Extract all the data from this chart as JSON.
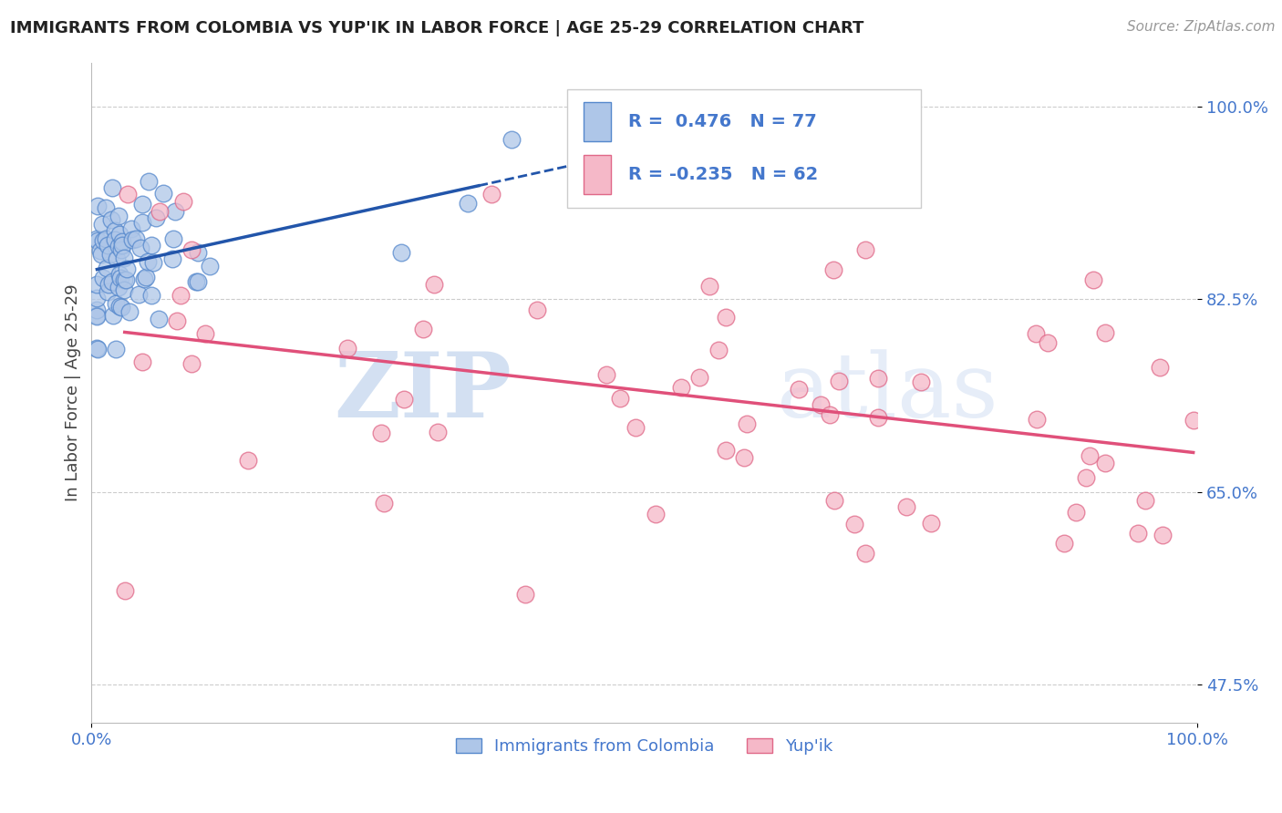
{
  "title": "IMMIGRANTS FROM COLOMBIA VS YUP'IK IN LABOR FORCE | AGE 25-29 CORRELATION CHART",
  "source_text": "Source: ZipAtlas.com",
  "ylabel": "In Labor Force | Age 25-29",
  "xlim": [
    0.0,
    1.0
  ],
  "ylim": [
    0.44,
    1.04
  ],
  "y_ticks": [
    0.475,
    0.65,
    0.825,
    1.0
  ],
  "y_tick_labels": [
    "47.5%",
    "65.0%",
    "82.5%",
    "100.0%"
  ],
  "legend_labels": [
    "Immigrants from Colombia",
    "Yup'ik"
  ],
  "colombia_color": "#aec6e8",
  "yupik_color": "#f5b8c8",
  "colombia_edge": "#5588cc",
  "yupik_edge": "#e06888",
  "trend_colombia_color": "#2255aa",
  "trend_yupik_color": "#e0507a",
  "R_colombia": 0.476,
  "N_colombia": 77,
  "R_yupik": -0.235,
  "N_yupik": 62,
  "background_color": "#ffffff",
  "grid_color": "#cccccc",
  "watermark_zip": "ZIP",
  "watermark_atlas": "atlas",
  "tick_color": "#4477cc"
}
